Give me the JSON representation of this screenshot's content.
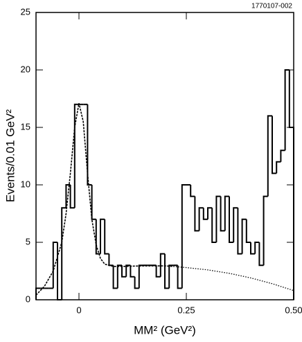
{
  "chart_data": {
    "type": "histogram",
    "annotation": "1770107-002",
    "xlabel": "MM² (GeV²)",
    "ylabel": "Events/0.01 GeV²",
    "bins": [
      -0.1,
      -0.09,
      -0.08,
      -0.07,
      -0.06,
      -0.05,
      -0.04,
      -0.03,
      -0.02,
      -0.01,
      0.0,
      0.01,
      0.02,
      0.03,
      0.04,
      0.05,
      0.06,
      0.07,
      0.08,
      0.09,
      0.1,
      0.11,
      0.12,
      0.13,
      0.14,
      0.15,
      0.16,
      0.17,
      0.18,
      0.19,
      0.2,
      0.21,
      0.22,
      0.23,
      0.24,
      0.25,
      0.26,
      0.27,
      0.28,
      0.29,
      0.3,
      0.31,
      0.32,
      0.33,
      0.34,
      0.35,
      0.36,
      0.37,
      0.38,
      0.39,
      0.4,
      0.41,
      0.42,
      0.43,
      0.44,
      0.45,
      0.46,
      0.47,
      0.48,
      0.49,
      0.5
    ],
    "values": [
      1,
      1,
      1,
      1,
      5,
      0,
      8,
      10,
      8,
      17,
      17,
      17,
      10,
      7,
      4,
      7,
      4,
      3,
      1,
      3,
      2,
      3,
      2,
      1,
      3,
      3,
      3,
      3,
      2,
      4,
      1,
      3,
      3,
      1,
      10,
      10,
      9,
      6,
      8,
      7,
      8,
      5,
      9,
      6,
      9,
      5,
      8,
      4,
      7,
      5,
      4,
      5,
      3,
      9,
      16,
      11,
      12,
      13,
      20,
      15
    ],
    "color": "#000000",
    "fits": [
      {
        "style": "dashed",
        "x": [
          -0.1,
          -0.08,
          -0.06,
          -0.04,
          -0.03,
          -0.02,
          -0.01,
          0.0,
          0.01,
          0.02,
          0.03,
          0.04,
          0.05,
          0.06,
          0.08,
          0.1,
          0.15,
          0.2,
          0.22
        ],
        "values": [
          0.4,
          1.2,
          2.5,
          5,
          7.5,
          11,
          15,
          17.1,
          15.5,
          11,
          7,
          4.8,
          3.6,
          3.1,
          2.9,
          2.9,
          2.95,
          2.95,
          2.9
        ]
      },
      {
        "style": "dotted",
        "x": [
          0.22,
          0.25,
          0.3,
          0.35,
          0.4,
          0.45,
          0.5
        ],
        "values": [
          2.9,
          2.8,
          2.6,
          2.3,
          1.9,
          1.4,
          0.8
        ]
      }
    ],
    "xlim": [
      -0.1,
      0.5
    ],
    "ylim": [
      0,
      25
    ],
    "xticks": [
      0,
      0.25,
      {
        "value": 0.5,
        "label": "0.50"
      }
    ],
    "yticks": [
      0,
      5,
      10,
      15,
      20,
      25
    ]
  }
}
